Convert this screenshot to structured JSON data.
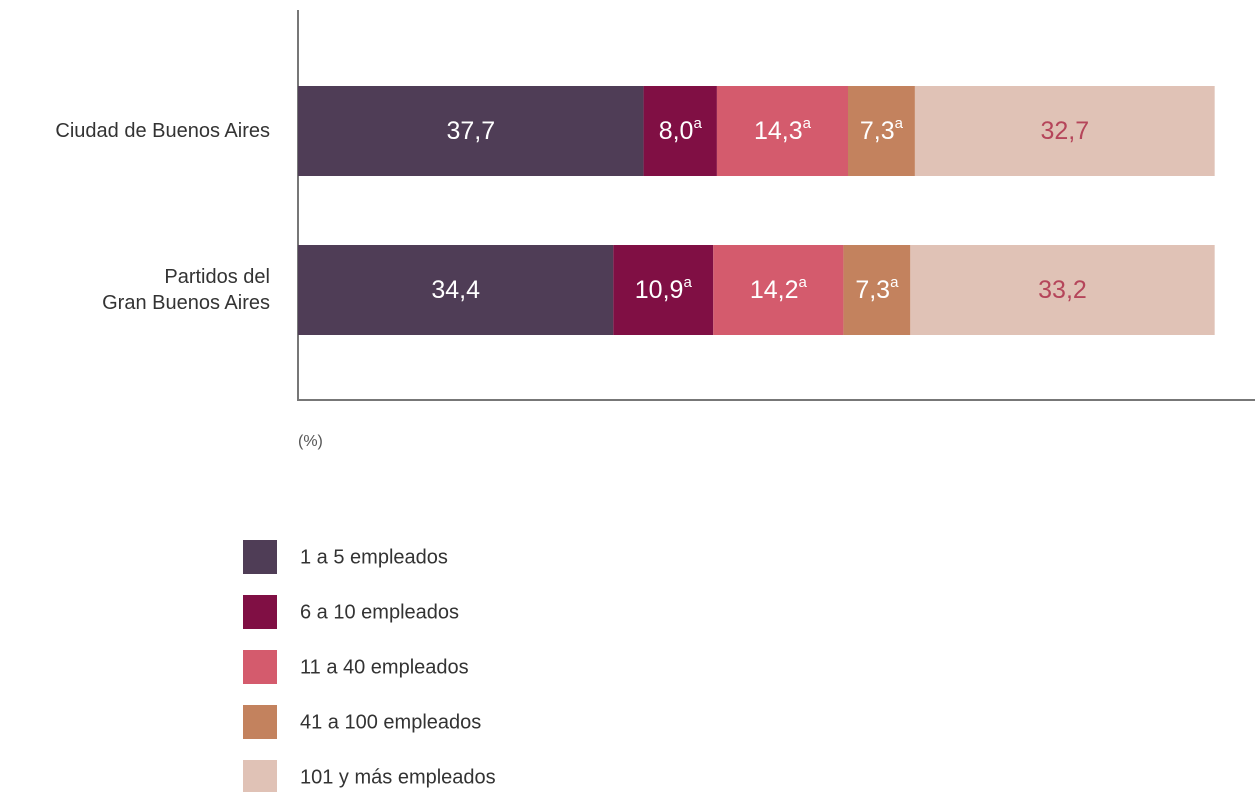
{
  "chart_data": {
    "type": "stacked-barh",
    "categories": [
      "Ciudad de Buenos Aires",
      "Partidos del\nGran Buenos Aires"
    ],
    "xlim": [
      0,
      104.4
    ],
    "axis_unit": "(%)",
    "series": [
      {
        "name": "1 a 5 empleados",
        "color": "#4f3d56",
        "label_color": "#ffffff",
        "values": [
          37.7,
          34.4
        ],
        "value_labels": [
          "37,7",
          "34,4"
        ],
        "flags": [
          null,
          null
        ]
      },
      {
        "name": "6 a 10 empleados",
        "color": "#800f44",
        "label_color": "#ffffff",
        "values": [
          8.0,
          10.9
        ],
        "value_labels": [
          "8,0",
          "10,9"
        ],
        "flags": [
          "a",
          "a"
        ]
      },
      {
        "name": "11 a 40 empleados",
        "color": "#d45b6d",
        "label_color": "#ffffff",
        "values": [
          14.3,
          14.2
        ],
        "value_labels": [
          "14,3",
          "14,2"
        ],
        "flags": [
          "a",
          "a"
        ]
      },
      {
        "name": "41 a 100 empleados",
        "color": "#c3825e",
        "label_color": "#ffffff",
        "values": [
          7.3,
          7.3
        ],
        "value_labels": [
          "7,3",
          "7,3"
        ],
        "flags": [
          "a",
          "a"
        ]
      },
      {
        "name": "101 y más empleados",
        "color": "#e0c2b6",
        "label_color": "#b5455a",
        "values": [
          32.7,
          33.2
        ],
        "value_labels": [
          "32,7",
          "33,2"
        ],
        "flags": [
          null,
          null
        ]
      }
    ]
  }
}
